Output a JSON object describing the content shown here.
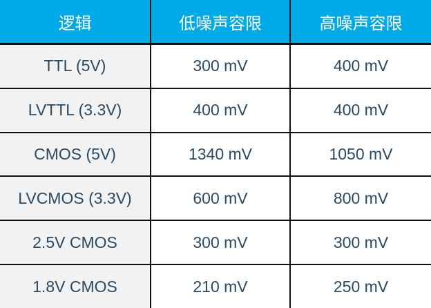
{
  "table": {
    "headers": [
      "逻辑",
      "低噪声容限",
      "高噪声容限"
    ],
    "rows": [
      [
        "TTL (5V)",
        "300 mV",
        "400 mV"
      ],
      [
        "LVTTL (3.3V)",
        "400 mV",
        "400 mV"
      ],
      [
        "CMOS (5V)",
        "1340 mV",
        "1050 mV"
      ],
      [
        "LVCMOS (3.3V)",
        "600 mV",
        "800 mV"
      ],
      [
        "2.5V CMOS",
        "300 mV",
        "300 mV"
      ],
      [
        "1.8V CMOS",
        "210 mV",
        "250 mV"
      ]
    ]
  },
  "colors": {
    "header_bg": "#00a9e8",
    "text": "#2a4a63",
    "first_col_bg": "#f2f2f2"
  }
}
